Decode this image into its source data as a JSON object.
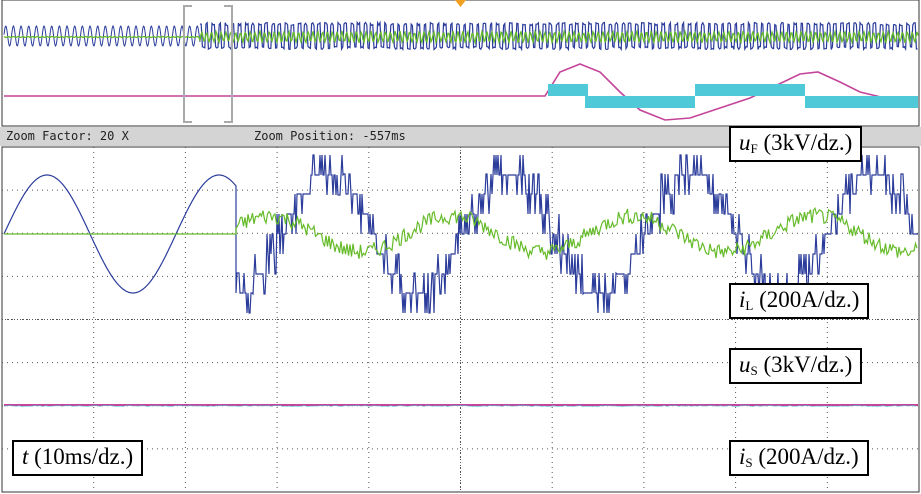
{
  "zoom": {
    "factor_text": "Zoom Factor: 20 X",
    "position_text": "Zoom Position: -557ms"
  },
  "labels": {
    "uF": {
      "symbol": "u",
      "sub": "F",
      "scale": "(3kV/dz.)"
    },
    "iL": {
      "symbol": "i",
      "sub": "L",
      "scale": "(200A/dz.)"
    },
    "uS": {
      "symbol": "u",
      "sub": "S",
      "scale": "(3kV/dz.)"
    },
    "iS": {
      "symbol": "i",
      "sub": "S",
      "scale": "(200A/dz.)"
    },
    "t": {
      "symbol": "t",
      "scale": "(10ms/dz.)"
    }
  },
  "colors": {
    "uF": "#2b3c9b",
    "iL": "#66bb2a",
    "uS": "#c4449a",
    "iS": "#4fc8d8",
    "grid": "#555555",
    "marker": "#f0a020",
    "zoom_box": "#aaaaaa"
  },
  "chart_data": {
    "type": "line",
    "description_of_axes": "oscilloscope capture, 10 x 8 divisions",
    "grid": true,
    "x_divisions": 10,
    "y_divisions": 8,
    "series": [
      {
        "name": "uF",
        "scale": "3kV/dz."
      },
      {
        "name": "iL",
        "scale": "200A/dz."
      },
      {
        "name": "uS",
        "scale": "3kV/dz."
      },
      {
        "name": "iS",
        "scale": "200A/dz."
      }
    ],
    "x_scale": "10ms/dz.",
    "zoom_factor": 20,
    "zoom_position_ms": -557
  }
}
